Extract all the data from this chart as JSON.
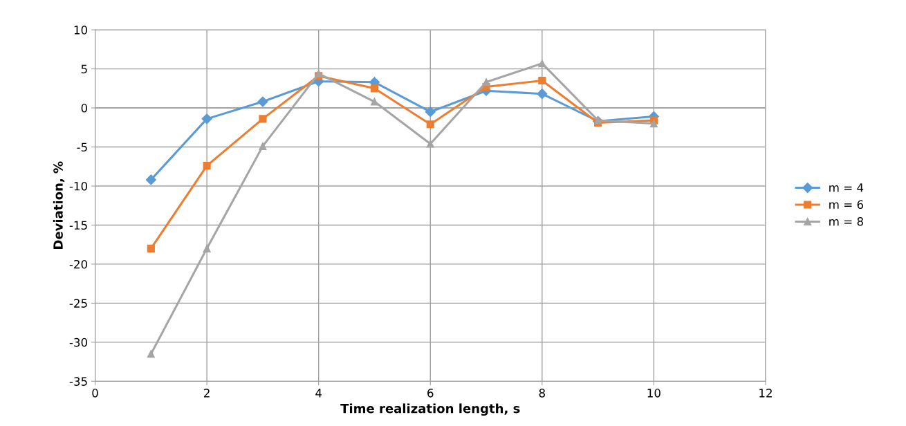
{
  "chart_data": {
    "type": "line",
    "xlabel": "Time realization length, s",
    "ylabel": "Deviation, %",
    "x": [
      1,
      2,
      3,
      4,
      5,
      6,
      7,
      8,
      9,
      10
    ],
    "series": [
      {
        "name": "m = 4",
        "color": "#5b9bd5",
        "marker": "diamond",
        "values": [
          -9.2,
          -1.4,
          0.8,
          3.4,
          3.3,
          -0.5,
          2.2,
          1.8,
          -1.7,
          -1.1
        ]
      },
      {
        "name": "m = 6",
        "color": "#ed7d31",
        "marker": "square",
        "values": [
          -18.0,
          -7.4,
          -1.4,
          4.1,
          2.5,
          -2.1,
          2.7,
          3.5,
          -1.9,
          -1.6
        ]
      },
      {
        "name": "m = 8",
        "color": "#a5a5a5",
        "marker": "triangle",
        "values": [
          -31.5,
          -18.0,
          -4.9,
          4.4,
          0.8,
          -4.6,
          3.3,
          5.7,
          -1.6,
          -2.0
        ]
      }
    ],
    "xlim": [
      0,
      12
    ],
    "xticks": [
      0,
      2,
      4,
      6,
      8,
      10,
      12
    ],
    "ylim": [
      -35,
      10
    ],
    "yticks": [
      -35,
      -30,
      -25,
      -20,
      -15,
      -10,
      -5,
      0,
      5,
      10
    ],
    "grid": true,
    "legend": "right",
    "line_style": "solid"
  }
}
